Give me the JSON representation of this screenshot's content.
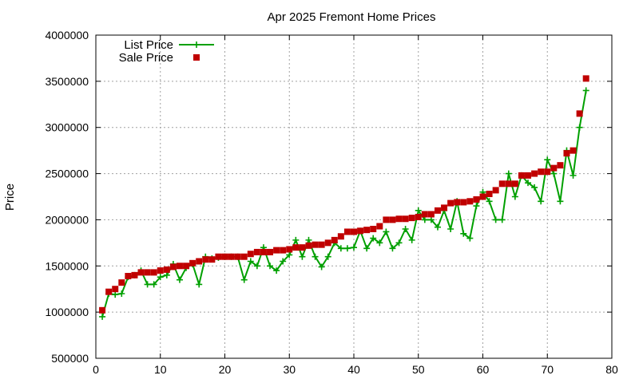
{
  "chart_data": {
    "type": "line",
    "title": "Apr 2025 Fremont Home Prices",
    "xlabel": "",
    "ylabel": "Price",
    "xlim": [
      0,
      80
    ],
    "ylim": [
      500000,
      4000000
    ],
    "xticks": [
      0,
      10,
      20,
      30,
      40,
      50,
      60,
      70,
      80
    ],
    "yticks": [
      500000,
      1000000,
      1500000,
      2000000,
      2500000,
      3000000,
      3500000,
      4000000
    ],
    "grid": true,
    "legend_position": "top-left",
    "x": [
      1,
      2,
      3,
      4,
      5,
      6,
      7,
      8,
      9,
      10,
      11,
      12,
      13,
      14,
      15,
      16,
      17,
      18,
      19,
      20,
      21,
      22,
      23,
      24,
      25,
      26,
      27,
      28,
      29,
      30,
      31,
      32,
      33,
      34,
      35,
      36,
      37,
      38,
      39,
      40,
      41,
      42,
      43,
      44,
      45,
      46,
      47,
      48,
      49,
      50,
      51,
      52,
      53,
      54,
      55,
      56,
      57,
      58,
      59,
      60,
      61,
      62,
      63,
      64,
      65,
      66,
      67,
      68,
      69,
      70,
      71,
      72,
      73,
      74,
      75,
      76
    ],
    "series": [
      {
        "name": "List Price",
        "style": "line-with-plus-markers",
        "color": "#00a000",
        "values": [
          950000,
          1200000,
          1190000,
          1200000,
          1380000,
          1400000,
          1450000,
          1300000,
          1300000,
          1380000,
          1400000,
          1520000,
          1350000,
          1480000,
          1520000,
          1300000,
          1600000,
          1580000,
          1590000,
          1600000,
          1600000,
          1600000,
          1350000,
          1550000,
          1500000,
          1700000,
          1500000,
          1450000,
          1550000,
          1620000,
          1780000,
          1600000,
          1780000,
          1600000,
          1490000,
          1600000,
          1750000,
          1690000,
          1690000,
          1700000,
          1880000,
          1690000,
          1800000,
          1750000,
          1870000,
          1690000,
          1750000,
          1900000,
          1780000,
          2100000,
          2000000,
          2000000,
          1920000,
          2100000,
          1900000,
          2200000,
          1850000,
          1800000,
          2150000,
          2300000,
          2200000,
          2000000,
          2000000,
          2500000,
          2250000,
          2480000,
          2400000,
          2350000,
          2200000,
          2650000,
          2500000,
          2200000,
          2750000,
          2480000,
          3000000,
          3400000
        ]
      },
      {
        "name": "Sale Price",
        "style": "square-markers",
        "color": "#c00000",
        "values": [
          1020000,
          1220000,
          1250000,
          1320000,
          1390000,
          1400000,
          1430000,
          1430000,
          1430000,
          1450000,
          1460000,
          1490000,
          1500000,
          1500000,
          1530000,
          1550000,
          1570000,
          1570000,
          1600000,
          1600000,
          1600000,
          1600000,
          1600000,
          1630000,
          1650000,
          1650000,
          1650000,
          1670000,
          1670000,
          1680000,
          1700000,
          1700000,
          1720000,
          1730000,
          1730000,
          1750000,
          1780000,
          1820000,
          1870000,
          1870000,
          1880000,
          1890000,
          1900000,
          1930000,
          2000000,
          2000000,
          2010000,
          2010000,
          2020000,
          2030000,
          2060000,
          2060000,
          2100000,
          2130000,
          2180000,
          2190000,
          2190000,
          2200000,
          2220000,
          2250000,
          2280000,
          2320000,
          2390000,
          2390000,
          2390000,
          2480000,
          2480000,
          2500000,
          2520000,
          2520000,
          2560000,
          2590000,
          2720000,
          2750000,
          3150000,
          3530000
        ]
      }
    ]
  }
}
